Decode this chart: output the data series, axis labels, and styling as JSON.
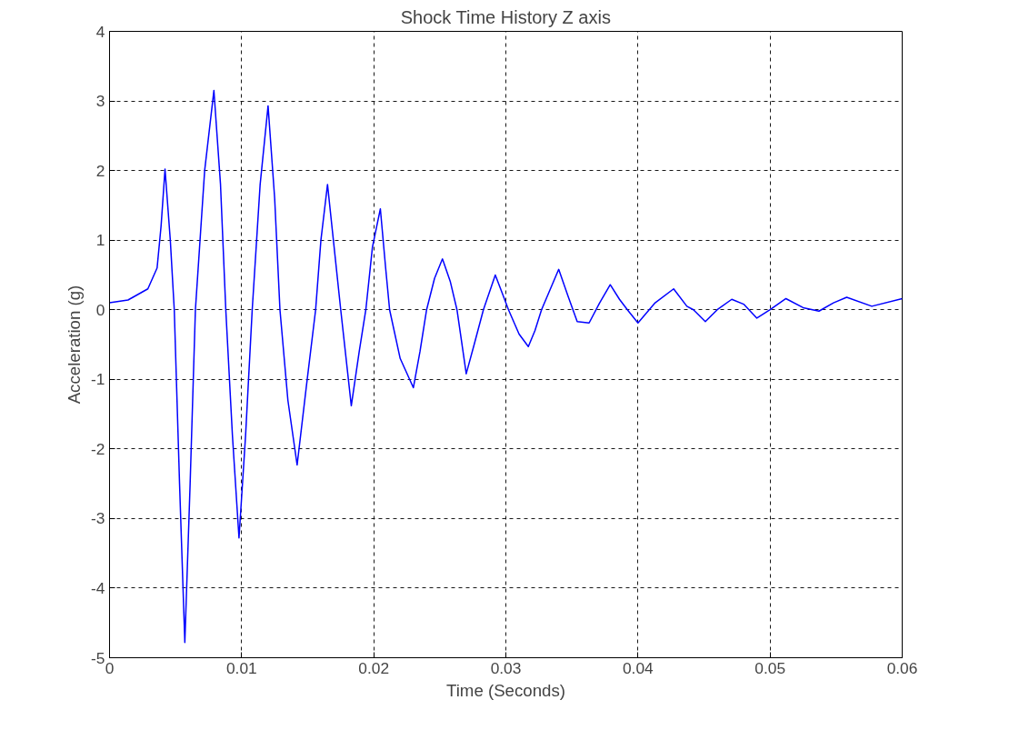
{
  "chart_data": {
    "type": "line",
    "title": "Shock Time History Z axis",
    "xlabel": "Time (Seconds)",
    "ylabel": "Acceleration (g)",
    "x": [
      0,
      0.0014,
      0.0029,
      0.0036,
      0.0039,
      0.0042,
      0.0046,
      0.0049,
      0.0053,
      0.0057,
      0.0061,
      0.0065,
      0.0072,
      0.0079,
      0.0084,
      0.0088,
      0.0093,
      0.0098,
      0.0103,
      0.0108,
      0.0114,
      0.012,
      0.0125,
      0.0129,
      0.0135,
      0.0142,
      0.0149,
      0.0156,
      0.016,
      0.0165,
      0.017,
      0.0175,
      0.0183,
      0.0189,
      0.0194,
      0.0199,
      0.0205,
      0.0209,
      0.0212,
      0.022,
      0.023,
      0.0235,
      0.024,
      0.0246,
      0.0252,
      0.0258,
      0.0263,
      0.027,
      0.0276,
      0.0283,
      0.0292,
      0.0297,
      0.0302,
      0.031,
      0.0317,
      0.0322,
      0.0327,
      0.034,
      0.0347,
      0.0354,
      0.0363,
      0.0371,
      0.0379,
      0.0386,
      0.0392,
      0.04,
      0.0413,
      0.0427,
      0.0437,
      0.0442,
      0.0451,
      0.046,
      0.0471,
      0.048,
      0.049,
      0.05,
      0.0512,
      0.0525,
      0.0537,
      0.0548,
      0.0558,
      0.0577,
      0.06
    ],
    "values": [
      0.1,
      0.14,
      0.3,
      0.6,
      1.2,
      2.02,
      1.0,
      0,
      -2.5,
      -4.78,
      -2.5,
      0,
      2.0,
      3.15,
      1.8,
      0,
      -1.8,
      -3.28,
      -1.8,
      0,
      1.8,
      2.93,
      1.6,
      0,
      -1.3,
      -2.23,
      -1.1,
      0,
      1.0,
      1.8,
      0.9,
      0,
      -1.38,
      -0.6,
      0,
      0.9,
      1.45,
      0.6,
      0,
      -0.7,
      -1.12,
      -0.6,
      0,
      0.45,
      0.73,
      0.4,
      0,
      -0.92,
      -0.5,
      0,
      0.5,
      0.25,
      0,
      -0.35,
      -0.53,
      -0.3,
      0,
      0.58,
      0.2,
      -0.17,
      -0.19,
      0.1,
      0.36,
      0.15,
      0,
      -0.19,
      0.1,
      0.3,
      0.05,
      0,
      -0.17,
      0,
      0.15,
      0.08,
      -0.12,
      0,
      0.16,
      0.03,
      -0.02,
      0.1,
      0.18,
      0.05,
      0.16
    ],
    "color": "#0000ff",
    "xlim": [
      0,
      0.06
    ],
    "ylim": [
      -5,
      4
    ],
    "xticks": [
      0,
      0.01,
      0.02,
      0.03,
      0.04,
      0.05,
      0.06
    ],
    "yticks": [
      -5,
      -4,
      -3,
      -2,
      -1,
      0,
      1,
      2,
      3,
      4
    ],
    "grid": true,
    "line_style": "solid",
    "marker": "none"
  }
}
